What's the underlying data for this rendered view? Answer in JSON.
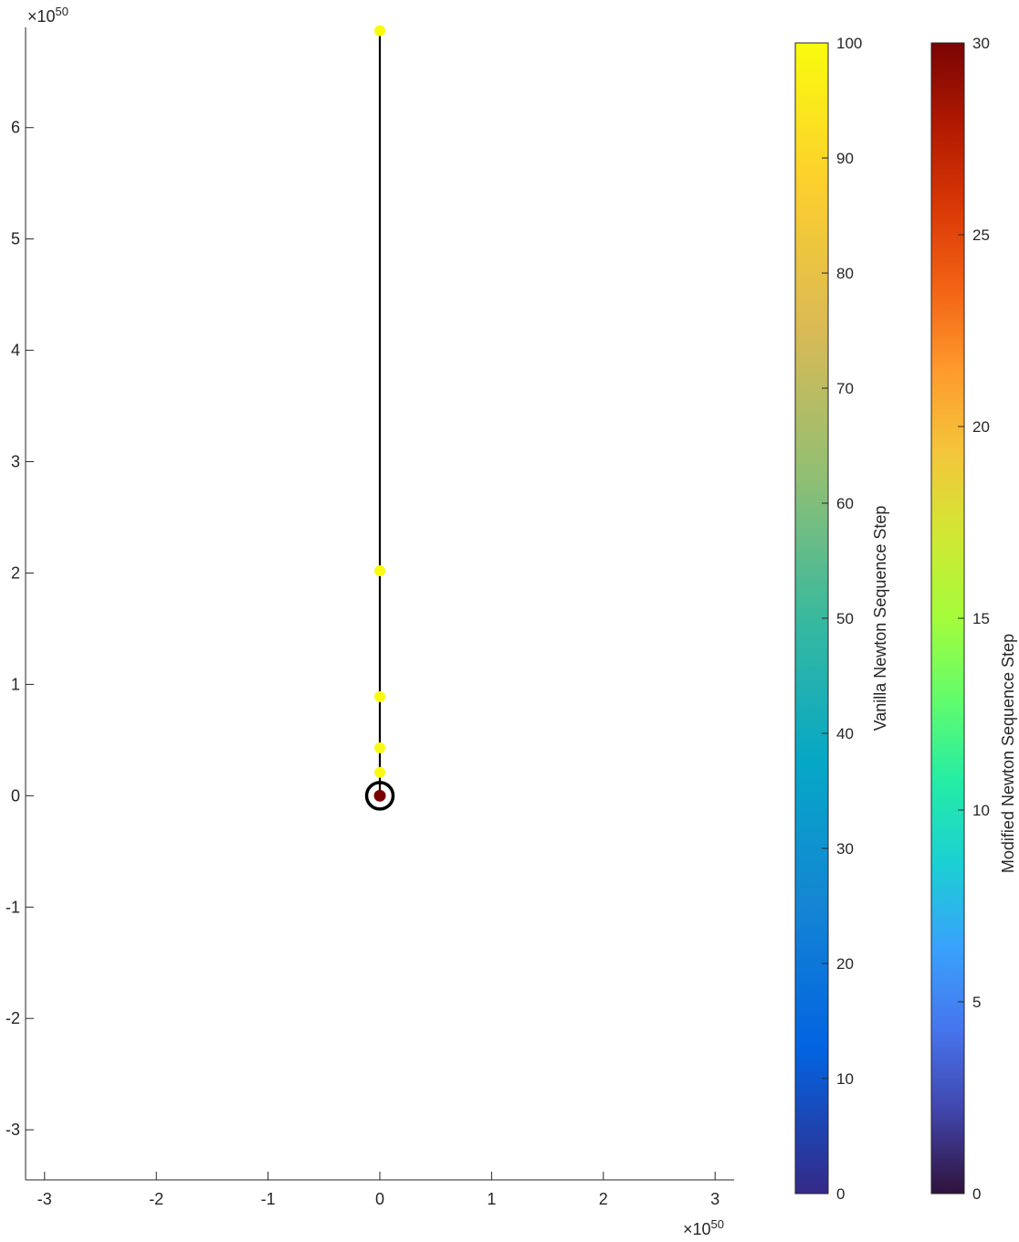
{
  "chart_data": {
    "type": "scatter",
    "title": "",
    "xlabel": "",
    "ylabel": "",
    "x_exponent_label": "×10",
    "x_exponent_power": "50",
    "y_exponent_label": "×10",
    "y_exponent_power": "50",
    "xlim": [
      -3.17,
      3.17
    ],
    "ylim": [
      -3.45,
      6.9
    ],
    "x_ticks": [
      -3,
      -2,
      -1,
      0,
      1,
      2,
      3
    ],
    "x_tick_labels": [
      "-3",
      "-2",
      "-1",
      "0",
      "1",
      "2",
      "3"
    ],
    "y_ticks": [
      -3,
      -2,
      -1,
      0,
      1,
      2,
      3,
      4,
      5,
      6
    ],
    "y_tick_labels": [
      "-3",
      "-2",
      "-1",
      "0",
      "1",
      "2",
      "3",
      "4",
      "5",
      "6"
    ],
    "grid": false,
    "series": [
      {
        "points": [
          {
            "x": 0,
            "y": 0.0,
            "step": 95,
            "color": "#f8f414"
          },
          {
            "x": 0,
            "y": 0.21,
            "step": 96,
            "color": "#f9f812"
          },
          {
            "x": 0,
            "y": 0.43,
            "step": 97,
            "color": "#f9f812"
          },
          {
            "x": 0,
            "y": 0.89,
            "step": 98,
            "color": "#f9fa10"
          },
          {
            "x": 0,
            "y": 2.02,
            "step": 99,
            "color": "#f9fb0e"
          },
          {
            "x": 0,
            "y": 6.87,
            "step": 100,
            "color": "#f9fb0e"
          }
        ],
        "line_color": "#000000"
      },
      {
        "points": [
          {
            "x": 0,
            "y": 0.0,
            "step": 30,
            "color": "#7a0403"
          }
        ]
      }
    ],
    "root_marker": {
      "x": 0,
      "y": 0,
      "color": "#000000"
    },
    "colorbars": [
      {
        "label": "Vanilla Newton Sequence Step",
        "min": 0,
        "max": 100,
        "ticks": [
          0,
          10,
          20,
          30,
          40,
          50,
          60,
          70,
          80,
          90,
          100
        ],
        "tick_labels": [
          "0",
          "10",
          "20",
          "30",
          "40",
          "50",
          "60",
          "70",
          "80",
          "90",
          "100"
        ],
        "colormap": "parula",
        "stops": [
          "#352a87",
          "#0363e1",
          "#1485d4",
          "#06a7c6",
          "#38b99e",
          "#92bf73",
          "#d9ba56",
          "#fcce2e",
          "#f9fb0e"
        ]
      },
      {
        "label": "Modified Newton Sequence Step",
        "min": 0,
        "max": 30,
        "ticks": [
          0,
          5,
          10,
          15,
          20,
          25,
          30
        ],
        "tick_labels": [
          "0",
          "5",
          "10",
          "15",
          "20",
          "25",
          "30"
        ],
        "colormap": "turbo",
        "stops": [
          "#30123b",
          "#4145ab",
          "#4675ed",
          "#39a2fc",
          "#1bcfd4",
          "#24eca6",
          "#61fc6c",
          "#a4fc3b",
          "#d1e834",
          "#f3c63a",
          "#fe9b2d",
          "#f36315",
          "#d93806",
          "#b11901",
          "#7a0403"
        ]
      }
    ]
  }
}
